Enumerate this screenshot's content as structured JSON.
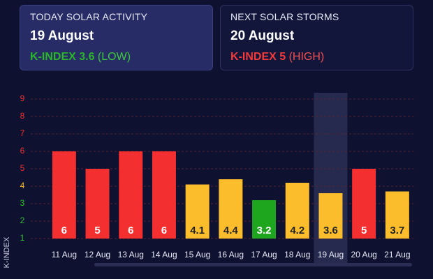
{
  "cards": [
    {
      "title": "TODAY SOLAR ACTIVITY",
      "date": "19 August",
      "index": "K-INDEX 3.6",
      "level": "(LOW)",
      "color": "#2bb52b",
      "level_color": "#3cc83c"
    },
    {
      "title": "NEXT SOLAR STORMS",
      "date": "20 August",
      "index": "K-INDEX 5",
      "level": "(HIGH)",
      "color": "#f23a3a",
      "level_color": "#f25050"
    }
  ],
  "chart_data": {
    "type": "bar",
    "y_label": "K-INDEX",
    "categories": [
      "11 Aug",
      "12 Aug",
      "13 Aug",
      "14 Aug",
      "15 Aug",
      "16 Aug",
      "17 Aug",
      "18 Aug",
      "19 Aug",
      "20 Aug",
      "21 Aug"
    ],
    "values": [
      6,
      5,
      6,
      6,
      4.1,
      4.4,
      3.2,
      4.2,
      3.6,
      5,
      3.7
    ],
    "colors": [
      "#f42f2f",
      "#f42f2f",
      "#f42f2f",
      "#f42f2f",
      "#fbbd2c",
      "#fbbd2c",
      "#1ea61e",
      "#fbbd2c",
      "#fbbd2c",
      "#f42f2f",
      "#fbbd2c"
    ],
    "highlight_index": 8,
    "ylim": [
      1,
      9
    ],
    "yticks": [
      1,
      2,
      3,
      4,
      5,
      6,
      7,
      8,
      9
    ],
    "ytick_colors": [
      "#2fbf2f",
      "#2fbf2f",
      "#2fbf2f",
      "#fbbd2c",
      "#f42f2f",
      "#f42f2f",
      "#f42f2f",
      "#f42f2f",
      "#f42f2f"
    ],
    "grid": true
  }
}
